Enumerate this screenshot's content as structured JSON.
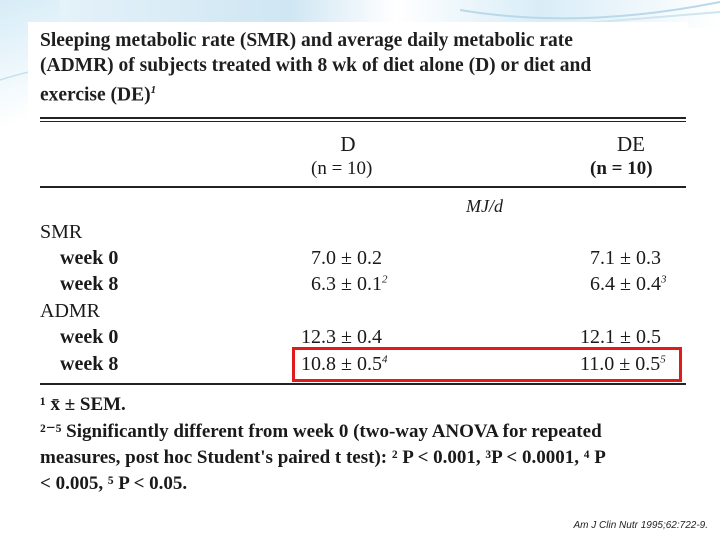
{
  "caption": {
    "line1": "Sleeping metabolic rate (SMR) and average daily metabolic rate",
    "line2": "(ADMR) of subjects treated with 8 wk of diet alone (D) or diet and",
    "line3": "exercise (DE)",
    "line3_sup": "1"
  },
  "table": {
    "columns": [
      {
        "label": "D",
        "n": "(n = 10)"
      },
      {
        "label": "DE",
        "n": "(n = 10)"
      }
    ],
    "unit": "MJ/d",
    "groups": [
      {
        "name": "SMR",
        "rows": [
          {
            "label": "week 0",
            "d": "7.0 ± 0.2",
            "d_sup": "",
            "de": "7.1 ± 0.3",
            "de_sup": ""
          },
          {
            "label": "week 8",
            "d": "6.3 ± 0.1",
            "d_sup": "2",
            "de": "6.4 ± 0.4",
            "de_sup": "3"
          }
        ]
      },
      {
        "name": "ADMR",
        "rows": [
          {
            "label": "week 0",
            "d": "12.3 ± 0.4",
            "d_sup": "",
            "de": "12.1 ± 0.5",
            "de_sup": ""
          },
          {
            "label": "week 8",
            "d": "10.8 ± 0.5",
            "d_sup": "4",
            "de": "11.0 ± 0.5",
            "de_sup": "5"
          }
        ]
      }
    ]
  },
  "footnotes": {
    "f1": "¹ x̄ ± SEM.",
    "f2": "²⁻⁵ Significantly different from week 0 (two-way ANOVA for repeated",
    "f3": "measures, post hoc Student's paired t test): ² P < 0.001, ³P < 0.0001, ⁴ P",
    "f4": "< 0.005, ⁵ P < 0.05."
  },
  "citation": "Am J Clin Nutr 1995;62:722-9."
}
